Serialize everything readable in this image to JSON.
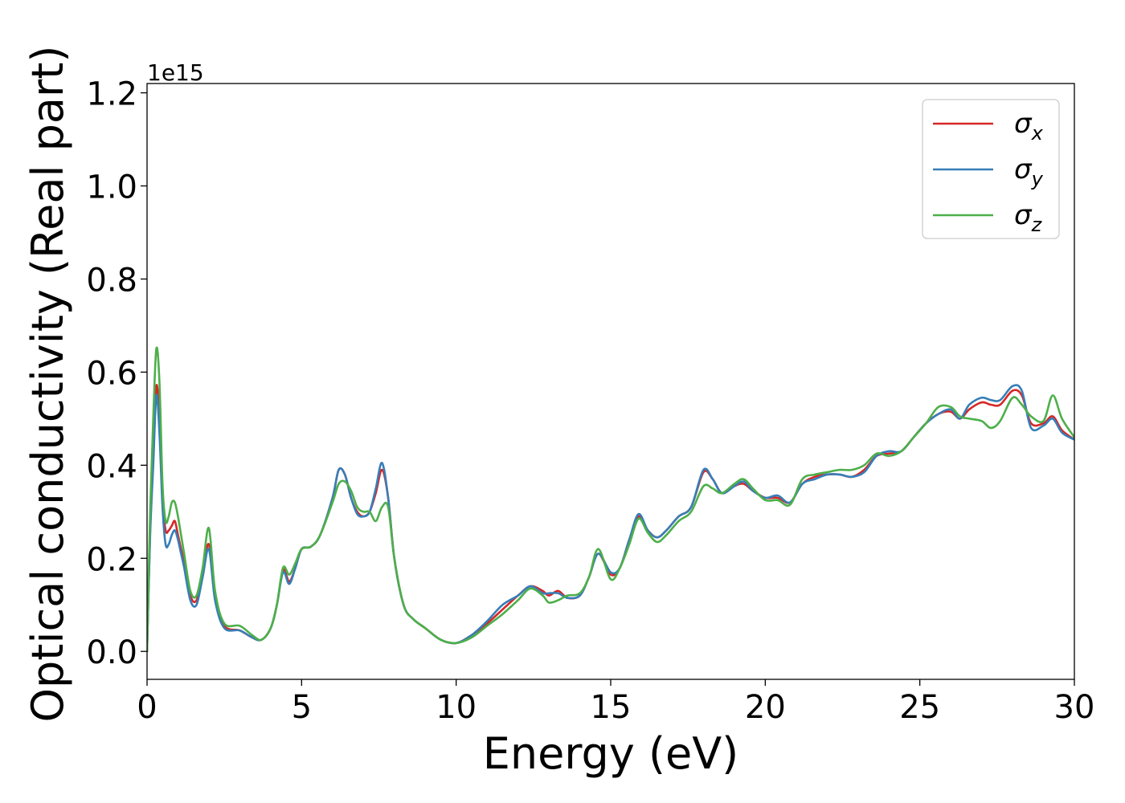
{
  "chart_data": {
    "type": "line",
    "xlabel": "Energy (eV)",
    "ylabel": "Optical conductivity (Real part)",
    "y_offset_label": "1e15",
    "xlim": [
      0,
      30
    ],
    "ylim": [
      -0.06,
      1.22
    ],
    "xticks": [
      0,
      5,
      10,
      15,
      20,
      25,
      30
    ],
    "xtick_labels": [
      "0",
      "5",
      "10",
      "15",
      "20",
      "25",
      "30"
    ],
    "yticks": [
      0.0,
      0.2,
      0.4,
      0.6,
      0.8,
      1.0,
      1.2
    ],
    "ytick_labels": [
      "0.0",
      "0.2",
      "0.4",
      "0.6",
      "0.8",
      "1.0",
      "1.2"
    ],
    "grid": false,
    "legend_position": "top-right",
    "x": [
      0,
      0.1,
      0.2,
      0.3,
      0.4,
      0.5,
      0.6,
      0.7,
      0.8,
      0.9,
      1.0,
      1.1,
      1.2,
      1.4,
      1.6,
      1.8,
      2.0,
      2.2,
      2.5,
      3.0,
      3.4,
      3.7,
      4.0,
      4.2,
      4.4,
      4.6,
      4.8,
      5.0,
      5.3,
      5.6,
      6.0,
      6.2,
      6.4,
      6.6,
      6.8,
      7.0,
      7.2,
      7.4,
      7.6,
      7.8,
      8.0,
      8.3,
      8.6,
      9.0,
      9.5,
      10.0,
      10.5,
      11.0,
      11.5,
      12.0,
      12.4,
      12.8,
      13.0,
      13.3,
      13.6,
      14.0,
      14.3,
      14.6,
      15.0,
      15.3,
      15.6,
      15.9,
      16.2,
      16.5,
      16.8,
      17.2,
      17.6,
      18.0,
      18.3,
      18.6,
      19.0,
      19.3,
      19.6,
      20.0,
      20.4,
      20.8,
      21.2,
      21.6,
      22.0,
      22.4,
      22.8,
      23.2,
      23.6,
      24.0,
      24.4,
      24.8,
      25.2,
      25.6,
      26.0,
      26.3,
      26.6,
      27.0,
      27.3,
      27.6,
      28.0,
      28.3,
      28.6,
      29.0,
      29.3,
      29.6,
      30.0
    ],
    "series": [
      {
        "name": "σ",
        "subscript": "x",
        "color": "#d62728",
        "values": [
          0.0,
          0.26,
          0.42,
          0.57,
          0.5,
          0.33,
          0.26,
          0.26,
          0.27,
          0.28,
          0.25,
          0.22,
          0.19,
          0.12,
          0.11,
          0.17,
          0.23,
          0.12,
          0.055,
          0.045,
          0.03,
          0.025,
          0.05,
          0.1,
          0.175,
          0.15,
          0.18,
          0.22,
          0.225,
          0.25,
          0.33,
          0.39,
          0.38,
          0.33,
          0.3,
          0.29,
          0.3,
          0.34,
          0.39,
          0.33,
          0.2,
          0.1,
          0.07,
          0.05,
          0.025,
          0.018,
          0.035,
          0.06,
          0.09,
          0.12,
          0.14,
          0.13,
          0.12,
          0.13,
          0.115,
          0.12,
          0.16,
          0.21,
          0.165,
          0.18,
          0.24,
          0.29,
          0.26,
          0.245,
          0.26,
          0.29,
          0.31,
          0.385,
          0.37,
          0.34,
          0.355,
          0.36,
          0.345,
          0.33,
          0.33,
          0.32,
          0.36,
          0.375,
          0.38,
          0.38,
          0.375,
          0.39,
          0.42,
          0.425,
          0.43,
          0.46,
          0.49,
          0.51,
          0.515,
          0.5,
          0.52,
          0.535,
          0.53,
          0.53,
          0.56,
          0.55,
          0.49,
          0.49,
          0.505,
          0.475,
          0.455
        ]
      },
      {
        "name": "σ",
        "subscript": "y",
        "color": "#377eb8",
        "values": [
          0.0,
          0.25,
          0.4,
          0.55,
          0.47,
          0.31,
          0.23,
          0.23,
          0.25,
          0.26,
          0.24,
          0.21,
          0.18,
          0.11,
          0.1,
          0.16,
          0.22,
          0.11,
          0.05,
          0.045,
          0.03,
          0.025,
          0.05,
          0.1,
          0.17,
          0.145,
          0.18,
          0.22,
          0.225,
          0.25,
          0.33,
          0.39,
          0.38,
          0.33,
          0.295,
          0.29,
          0.3,
          0.35,
          0.405,
          0.33,
          0.2,
          0.1,
          0.07,
          0.05,
          0.025,
          0.018,
          0.035,
          0.065,
          0.1,
          0.12,
          0.14,
          0.125,
          0.125,
          0.125,
          0.115,
          0.12,
          0.16,
          0.21,
          0.17,
          0.18,
          0.24,
          0.295,
          0.26,
          0.245,
          0.26,
          0.29,
          0.31,
          0.39,
          0.37,
          0.34,
          0.355,
          0.365,
          0.345,
          0.33,
          0.335,
          0.32,
          0.36,
          0.37,
          0.38,
          0.38,
          0.375,
          0.385,
          0.42,
          0.43,
          0.43,
          0.46,
          0.49,
          0.51,
          0.52,
          0.5,
          0.53,
          0.545,
          0.54,
          0.54,
          0.57,
          0.56,
          0.48,
          0.485,
          0.5,
          0.47,
          0.455
        ]
      },
      {
        "name": "σ",
        "subscript": "z",
        "color": "#4daf4a",
        "values": [
          0.0,
          0.3,
          0.5,
          0.65,
          0.58,
          0.36,
          0.28,
          0.29,
          0.32,
          0.32,
          0.29,
          0.25,
          0.21,
          0.13,
          0.12,
          0.18,
          0.265,
          0.13,
          0.06,
          0.055,
          0.035,
          0.025,
          0.05,
          0.1,
          0.18,
          0.165,
          0.19,
          0.22,
          0.225,
          0.25,
          0.32,
          0.36,
          0.365,
          0.345,
          0.31,
          0.3,
          0.3,
          0.28,
          0.31,
          0.31,
          0.2,
          0.1,
          0.07,
          0.05,
          0.025,
          0.018,
          0.03,
          0.055,
          0.08,
          0.11,
          0.135,
          0.12,
          0.105,
          0.11,
          0.12,
          0.125,
          0.16,
          0.22,
          0.155,
          0.18,
          0.23,
          0.285,
          0.255,
          0.235,
          0.25,
          0.28,
          0.3,
          0.355,
          0.35,
          0.34,
          0.36,
          0.37,
          0.35,
          0.325,
          0.325,
          0.315,
          0.37,
          0.38,
          0.385,
          0.39,
          0.39,
          0.4,
          0.425,
          0.42,
          0.43,
          0.46,
          0.49,
          0.525,
          0.525,
          0.505,
          0.5,
          0.495,
          0.48,
          0.495,
          0.545,
          0.53,
          0.505,
          0.495,
          0.55,
          0.5,
          0.46
        ]
      }
    ]
  }
}
